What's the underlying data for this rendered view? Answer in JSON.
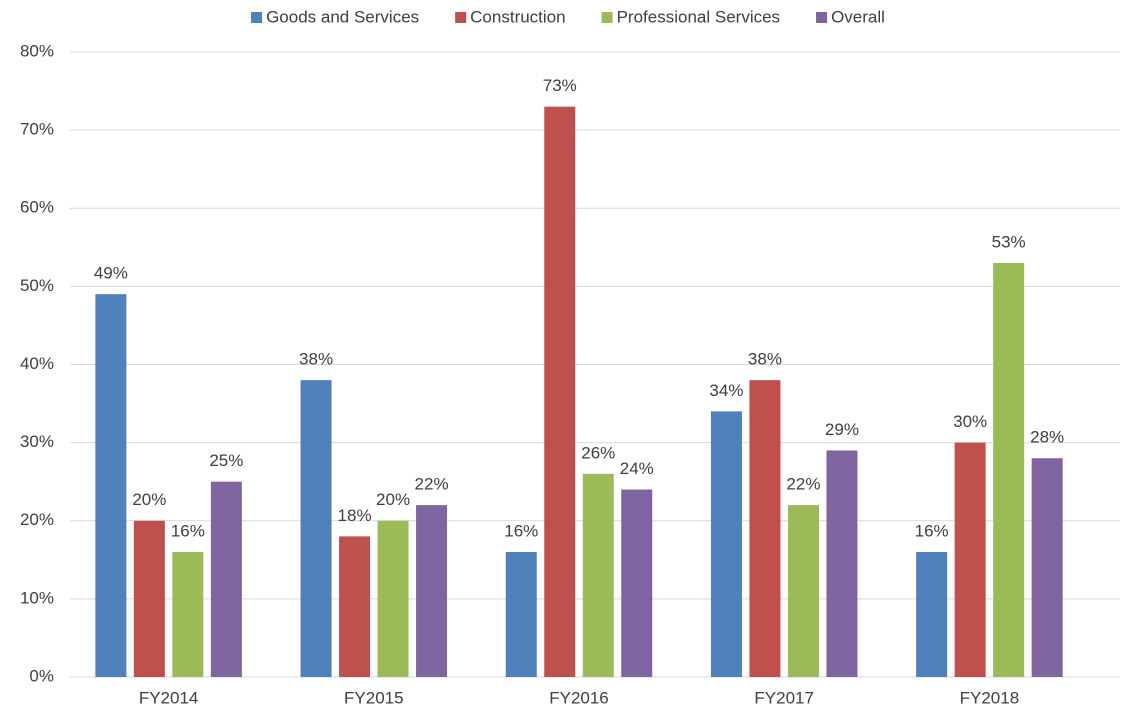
{
  "chart_data": {
    "type": "bar",
    "categories": [
      "FY2014",
      "FY2015",
      "FY2016",
      "FY2017",
      "FY2018"
    ],
    "series": [
      {
        "name": "Goods and Services",
        "color": "#4f81bd",
        "values": [
          49,
          38,
          16,
          34,
          16
        ],
        "value_labels": [
          "49%",
          "38%",
          "16%",
          "34%",
          "16%"
        ]
      },
      {
        "name": "Construction",
        "color": "#c0504d",
        "values": [
          20,
          18,
          73,
          38,
          30
        ],
        "value_labels": [
          "20%",
          "18%",
          "73%",
          "38%",
          "30%"
        ]
      },
      {
        "name": "Professional Services",
        "color": "#9bbb59",
        "values": [
          16,
          20,
          26,
          22,
          53
        ],
        "value_labels": [
          "16%",
          "20%",
          "26%",
          "22%",
          "53%"
        ]
      },
      {
        "name": "Overall",
        "color": "#8064a2",
        "values": [
          25,
          22,
          24,
          29,
          28
        ],
        "value_labels": [
          "25%",
          "22%",
          "24%",
          "29%",
          "28%"
        ]
      }
    ],
    "ylim": [
      0,
      80
    ],
    "yticks": [
      {
        "value": 0,
        "label": "0%"
      },
      {
        "value": 10,
        "label": "10%"
      },
      {
        "value": 20,
        "label": "20%"
      },
      {
        "value": 30,
        "label": "30%"
      },
      {
        "value": 40,
        "label": "40%"
      },
      {
        "value": 50,
        "label": "50%"
      },
      {
        "value": 60,
        "label": "60%"
      },
      {
        "value": 70,
        "label": "70%"
      },
      {
        "value": 80,
        "label": "80%"
      }
    ],
    "grid": true,
    "legend": "top"
  }
}
